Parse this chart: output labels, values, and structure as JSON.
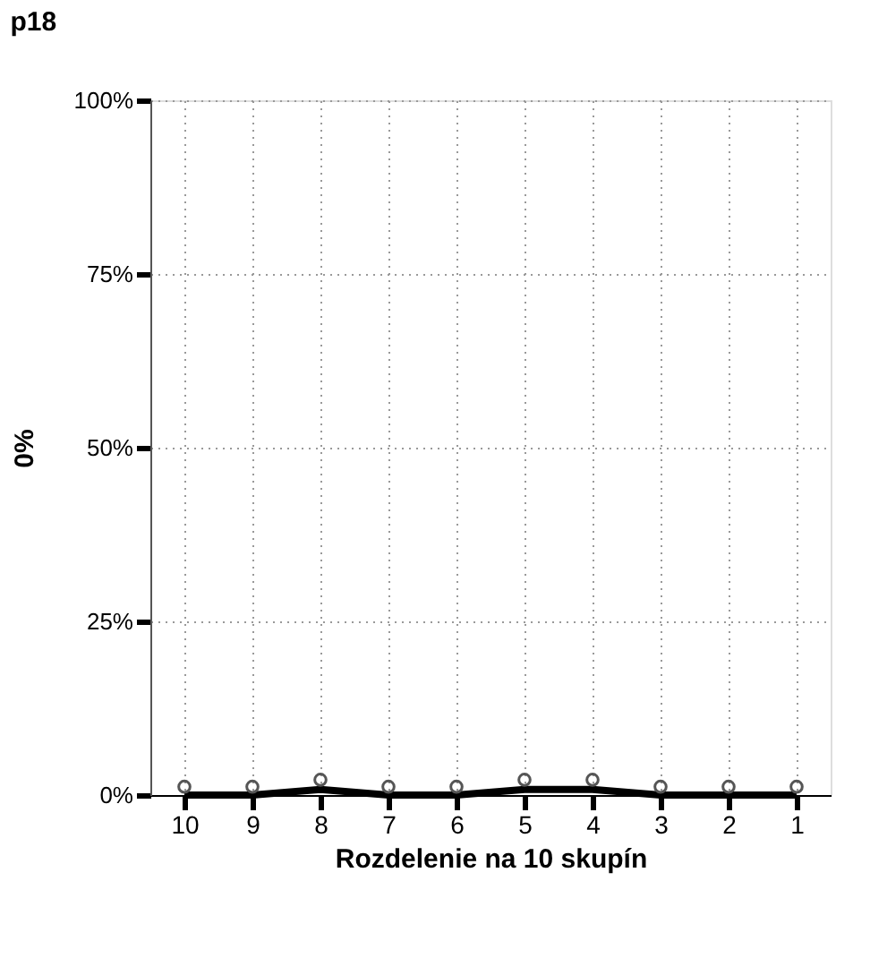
{
  "chart_data": {
    "type": "line",
    "title": "p18",
    "xlabel": "Rozdelenie na 10 skupín",
    "ylabel": "0%",
    "categories": [
      "10",
      "9",
      "8",
      "7",
      "6",
      "5",
      "4",
      "3",
      "2",
      "1"
    ],
    "series": [
      {
        "color": "#000000",
        "marker": "none",
        "line_style": "solid",
        "values": [
          0,
          0,
          0.8,
          0,
          0,
          0.8,
          0.8,
          0,
          0,
          0
        ]
      },
      {
        "type": "scatter",
        "color": "#555555",
        "marker": "circle",
        "values": [
          1.2,
          1.2,
          2.2,
          1.2,
          1.2,
          2.2,
          2.2,
          1.2,
          1.2,
          1.2
        ]
      }
    ],
    "ylim": [
      0,
      100
    ],
    "yticks": [
      {
        "value": 0,
        "label": "0%"
      },
      {
        "value": 25,
        "label": "25%"
      },
      {
        "value": 50,
        "label": "50%"
      },
      {
        "value": 75,
        "label": "75%"
      },
      {
        "value": 100,
        "label": "100%"
      }
    ],
    "grid": true
  }
}
